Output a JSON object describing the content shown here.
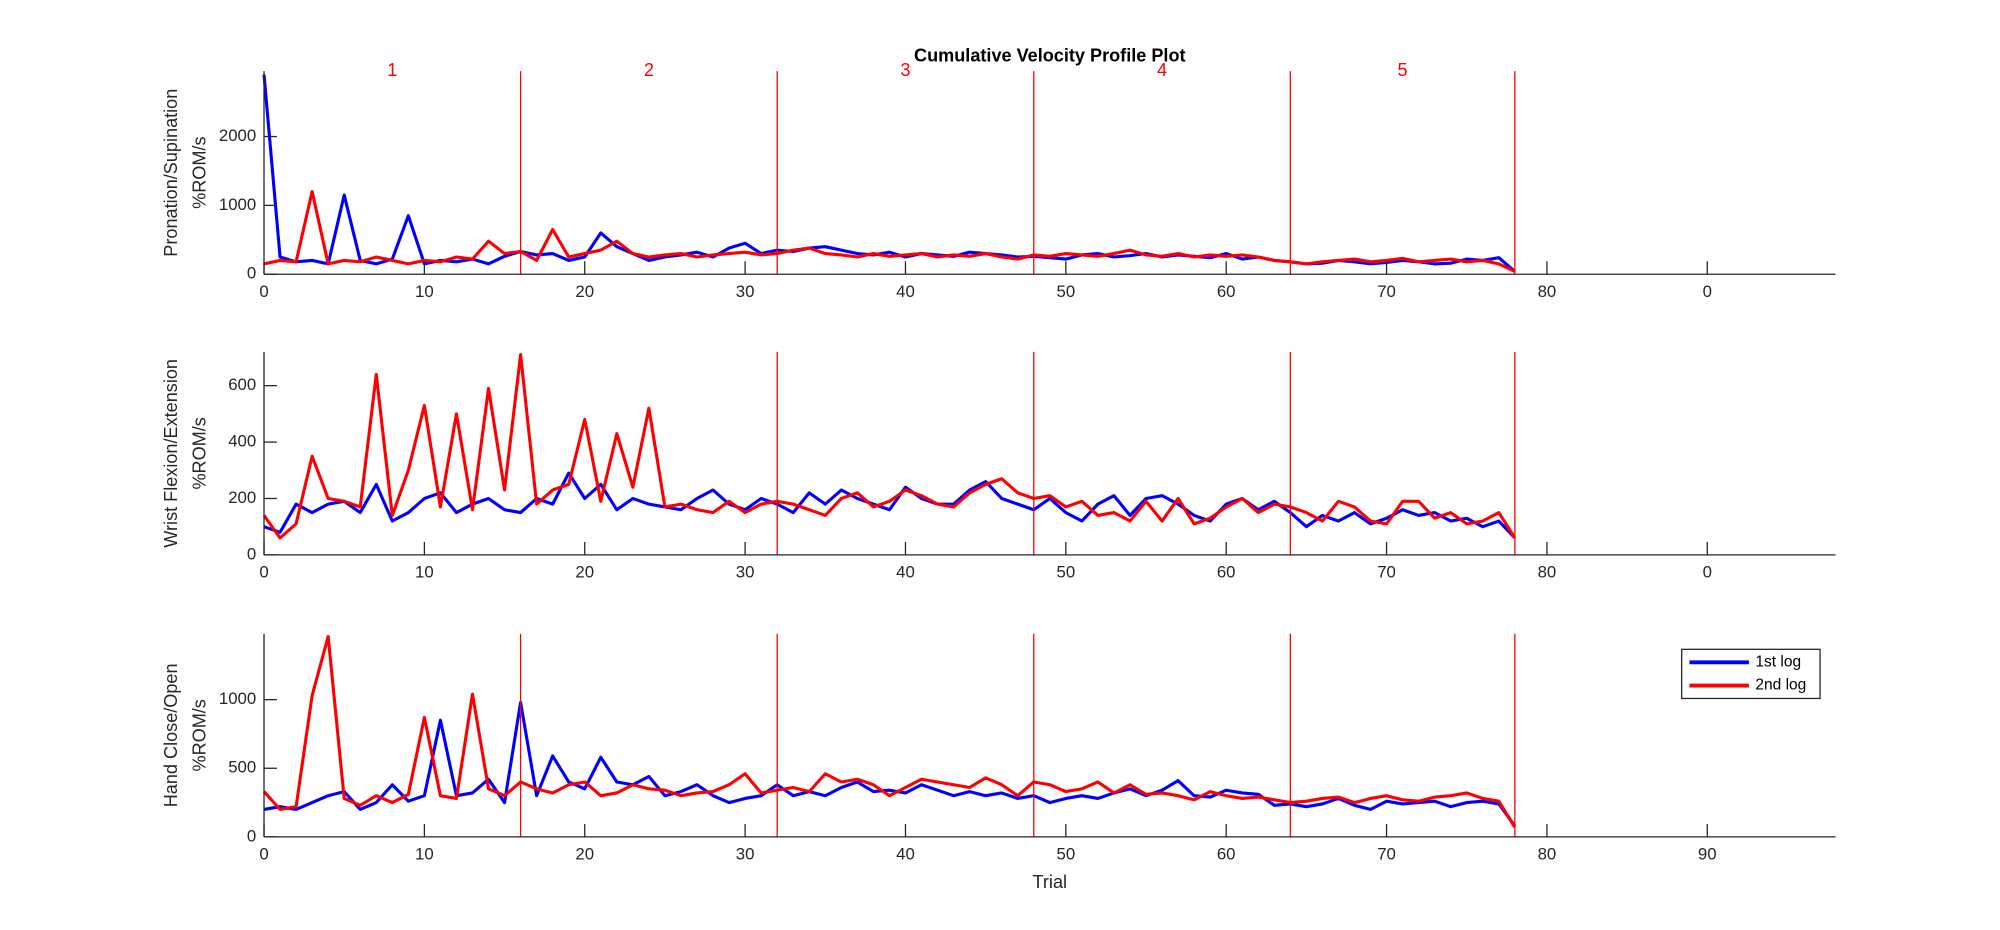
{
  "chart_data": [
    {
      "type": "line",
      "title": "Cumulative Velocity Profile Plot",
      "ylabel": [
        "Pronation/Supination",
        "%ROM/s"
      ],
      "x": [
        0,
        1,
        2,
        3,
        4,
        5,
        6,
        7,
        8,
        9,
        10,
        11,
        12,
        13,
        14,
        15,
        16,
        17,
        18,
        19,
        20,
        21,
        22,
        23,
        24,
        25,
        26,
        27,
        28,
        29,
        30,
        31,
        32,
        33,
        34,
        35,
        36,
        37,
        38,
        39,
        40,
        41,
        42,
        43,
        44,
        45,
        46,
        47,
        48,
        49,
        50,
        51,
        52,
        53,
        54,
        55,
        56,
        57,
        58,
        59,
        60,
        61,
        62,
        63,
        64,
        65,
        66,
        67,
        68,
        69,
        70,
        71,
        72,
        73,
        74,
        75,
        76,
        77,
        78
      ],
      "series": [
        {
          "name": "1st log",
          "color": "#0000ff",
          "values": [
            2900,
            250,
            180,
            200,
            150,
            1150,
            200,
            150,
            220,
            850,
            150,
            200,
            180,
            220,
            150,
            260,
            330,
            280,
            300,
            200,
            250,
            600,
            400,
            300,
            200,
            250,
            280,
            320,
            250,
            380,
            450,
            300,
            350,
            330,
            380,
            400,
            350,
            300,
            280,
            320,
            250,
            300,
            280,
            260,
            320,
            300,
            280,
            250,
            260,
            240,
            220,
            280,
            300,
            250,
            270,
            300,
            250,
            280,
            260,
            240,
            300,
            220,
            250,
            200,
            180,
            150,
            160,
            200,
            180,
            150,
            170,
            200,
            180,
            150,
            160,
            220,
            200,
            240,
            40
          ]
        },
        {
          "name": "2nd log",
          "color": "#ff0000",
          "values": [
            150,
            200,
            180,
            1200,
            150,
            200,
            180,
            250,
            200,
            150,
            200,
            180,
            250,
            220,
            480,
            300,
            330,
            200,
            650,
            250,
            300,
            350,
            480,
            300,
            250,
            280,
            300,
            250,
            280,
            300,
            320,
            280,
            300,
            350,
            380,
            300,
            280,
            250,
            300,
            260,
            280,
            300,
            250,
            280,
            260,
            300,
            250,
            220,
            280,
            260,
            300,
            280,
            260,
            300,
            350,
            280,
            260,
            300,
            250,
            280,
            260,
            280,
            250,
            200,
            180,
            150,
            180,
            200,
            220,
            180,
            200,
            230,
            180,
            200,
            220,
            180,
            200,
            150,
            40
          ]
        }
      ],
      "xlim": [
        0,
        98
      ],
      "xticks": [
        0,
        10,
        20,
        30,
        40,
        50,
        60,
        70,
        80,
        {
          "value": 90,
          "label": "0"
        }
      ],
      "ylim": [
        0,
        2950
      ],
      "yticks": [
        0,
        1000,
        2000
      ],
      "phase_lines": [
        16,
        32,
        48,
        64,
        78
      ],
      "phase_line_color": "#ff0000",
      "annotations": [
        {
          "text": "1",
          "x": 8
        },
        {
          "text": "2",
          "x": 24
        },
        {
          "text": "3",
          "x": 40
        },
        {
          "text": "4",
          "x": 56
        },
        {
          "text": "5",
          "x": 71
        }
      ]
    },
    {
      "type": "line",
      "ylabel": [
        "Wrist Flexion/Extension",
        "%ROM/s"
      ],
      "x": [
        0,
        1,
        2,
        3,
        4,
        5,
        6,
        7,
        8,
        9,
        10,
        11,
        12,
        13,
        14,
        15,
        16,
        17,
        18,
        19,
        20,
        21,
        22,
        23,
        24,
        25,
        26,
        27,
        28,
        29,
        30,
        31,
        32,
        33,
        34,
        35,
        36,
        37,
        38,
        39,
        40,
        41,
        42,
        43,
        44,
        45,
        46,
        47,
        48,
        49,
        50,
        51,
        52,
        53,
        54,
        55,
        56,
        57,
        58,
        59,
        60,
        61,
        62,
        63,
        64,
        65,
        66,
        67,
        68,
        69,
        70,
        71,
        72,
        73,
        74,
        75,
        76,
        77,
        78
      ],
      "series": [
        {
          "name": "1st log",
          "color": "#0000ff",
          "values": [
            100,
            80,
            180,
            150,
            180,
            190,
            150,
            250,
            120,
            150,
            200,
            220,
            150,
            180,
            200,
            160,
            150,
            200,
            180,
            290,
            200,
            250,
            160,
            200,
            180,
            170,
            160,
            200,
            230,
            180,
            160,
            200,
            180,
            150,
            220,
            180,
            230,
            200,
            180,
            160,
            240,
            200,
            180,
            180,
            230,
            260,
            200,
            180,
            160,
            200,
            150,
            120,
            180,
            210,
            140,
            200,
            210,
            180,
            140,
            120,
            180,
            200,
            160,
            190,
            150,
            100,
            140,
            120,
            150,
            110,
            130,
            160,
            140,
            150,
            120,
            130,
            100,
            120,
            60
          ]
        },
        {
          "name": "2nd log",
          "color": "#ff0000",
          "values": [
            140,
            60,
            110,
            350,
            200,
            190,
            170,
            640,
            140,
            300,
            530,
            170,
            500,
            160,
            590,
            230,
            710,
            180,
            230,
            250,
            480,
            190,
            430,
            240,
            520,
            170,
            180,
            160,
            150,
            190,
            150,
            180,
            190,
            180,
            160,
            140,
            200,
            220,
            170,
            190,
            230,
            210,
            180,
            170,
            220,
            250,
            270,
            220,
            200,
            210,
            170,
            190,
            140,
            150,
            120,
            190,
            120,
            200,
            110,
            130,
            170,
            200,
            150,
            180,
            170,
            150,
            120,
            190,
            170,
            120,
            110,
            190,
            190,
            130,
            150,
            110,
            120,
            150,
            60
          ]
        }
      ],
      "xlim": [
        0,
        98
      ],
      "xticks": [
        0,
        10,
        20,
        30,
        40,
        50,
        60,
        70,
        80,
        {
          "value": 90,
          "label": "0"
        }
      ],
      "ylim": [
        0,
        720
      ],
      "yticks": [
        0,
        200,
        400,
        600
      ],
      "phase_lines": [
        32,
        48,
        64,
        78
      ],
      "phase_line_color": "#ff0000"
    },
    {
      "type": "line",
      "ylabel": [
        "Hand Close/Open",
        "%ROM/s"
      ],
      "xlabel": "Trial",
      "x": [
        0,
        1,
        2,
        3,
        4,
        5,
        6,
        7,
        8,
        9,
        10,
        11,
        12,
        13,
        14,
        15,
        16,
        17,
        18,
        19,
        20,
        21,
        22,
        23,
        24,
        25,
        26,
        27,
        28,
        29,
        30,
        31,
        32,
        33,
        34,
        35,
        36,
        37,
        38,
        39,
        40,
        41,
        42,
        43,
        44,
        45,
        46,
        47,
        48,
        49,
        50,
        51,
        52,
        53,
        54,
        55,
        56,
        57,
        58,
        59,
        60,
        61,
        62,
        63,
        64,
        65,
        66,
        67,
        68,
        69,
        70,
        71,
        72,
        73,
        74,
        75,
        76,
        77,
        78
      ],
      "series": [
        {
          "name": "1st log",
          "color": "#0000ff",
          "values": [
            200,
            220,
            200,
            250,
            300,
            330,
            200,
            250,
            380,
            260,
            300,
            850,
            300,
            320,
            420,
            250,
            980,
            300,
            590,
            400,
            350,
            580,
            400,
            380,
            440,
            300,
            330,
            380,
            300,
            250,
            280,
            300,
            380,
            300,
            330,
            300,
            360,
            400,
            330,
            340,
            320,
            380,
            340,
            300,
            330,
            300,
            320,
            280,
            300,
            250,
            280,
            300,
            280,
            320,
            350,
            300,
            340,
            410,
            300,
            290,
            340,
            320,
            310,
            230,
            240,
            220,
            240,
            280,
            230,
            200,
            260,
            240,
            250,
            260,
            220,
            250,
            260,
            240,
            80
          ]
        },
        {
          "name": "2nd log",
          "color": "#ff0000",
          "values": [
            330,
            200,
            220,
            1030,
            1460,
            280,
            230,
            300,
            250,
            310,
            870,
            300,
            280,
            1040,
            350,
            300,
            400,
            350,
            320,
            380,
            400,
            300,
            320,
            380,
            350,
            340,
            300,
            320,
            330,
            380,
            460,
            320,
            340,
            360,
            330,
            460,
            400,
            420,
            380,
            300,
            360,
            420,
            400,
            380,
            360,
            430,
            380,
            300,
            400,
            380,
            330,
            350,
            400,
            320,
            380,
            310,
            320,
            300,
            270,
            330,
            300,
            280,
            290,
            270,
            250,
            260,
            280,
            290,
            250,
            280,
            300,
            270,
            260,
            290,
            300,
            320,
            280,
            260,
            70
          ]
        }
      ],
      "xlim": [
        0,
        98
      ],
      "xticks": [
        0,
        10,
        20,
        30,
        40,
        50,
        60,
        70,
        80,
        90
      ],
      "ylim": [
        0,
        1480
      ],
      "yticks": [
        0,
        500,
        1000
      ],
      "phase_lines": [
        16,
        32,
        48,
        64,
        78
      ],
      "phase_line_color": "#ff0000",
      "legend": "upper right"
    }
  ]
}
